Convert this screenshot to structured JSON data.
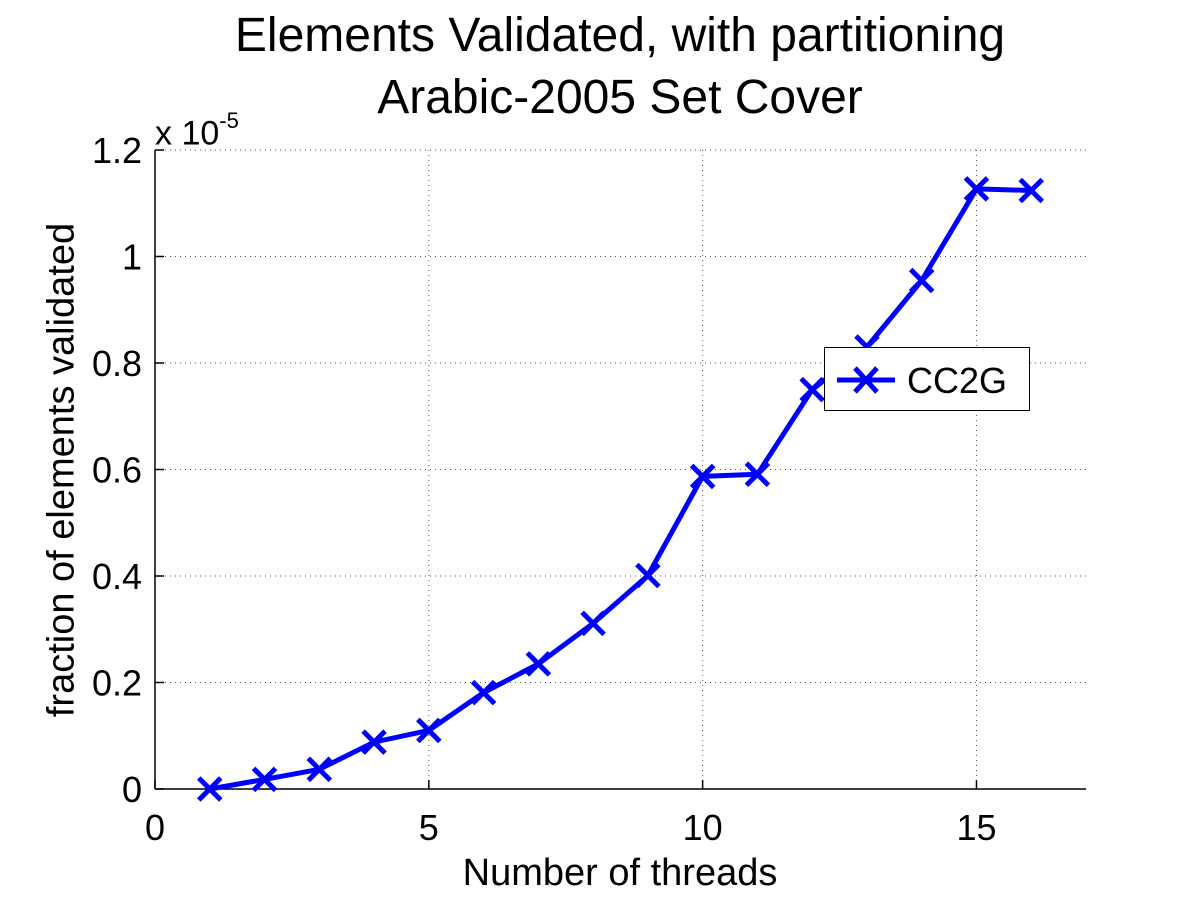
{
  "chart_data": {
    "type": "line",
    "title": "Elements Validated, with partitioning",
    "subtitle": "Arabic-2005 Set Cover",
    "xlabel": "Number of threads",
    "ylabel": "fraction of elements validated",
    "y_exponent_prefix": "x 10",
    "y_exponent": "-5",
    "xlim": [
      0,
      17
    ],
    "ylim": [
      0,
      1.2
    ],
    "x_ticks": [
      0,
      5,
      10,
      15
    ],
    "x_tick_labels": [
      "0",
      "5",
      "10",
      "15"
    ],
    "y_ticks": [
      0,
      0.2,
      0.4,
      0.6,
      0.8,
      1,
      1.2
    ],
    "y_tick_labels": [
      "0",
      "0.2",
      "0.4",
      "0.6",
      "0.8",
      "1",
      "1.2"
    ],
    "grid": true,
    "legend_position": "right",
    "series": [
      {
        "name": "CC2G",
        "color": "#0000ff",
        "marker": "x",
        "x": [
          1,
          2,
          3,
          4,
          5,
          6,
          7,
          8,
          9,
          10,
          11,
          12,
          13,
          14,
          15,
          16
        ],
        "y": [
          0.0,
          0.018,
          0.037,
          0.088,
          0.11,
          0.181,
          0.235,
          0.311,
          0.401,
          0.587,
          0.591,
          0.75,
          0.83,
          0.955,
          1.127,
          1.124
        ]
      }
    ]
  }
}
